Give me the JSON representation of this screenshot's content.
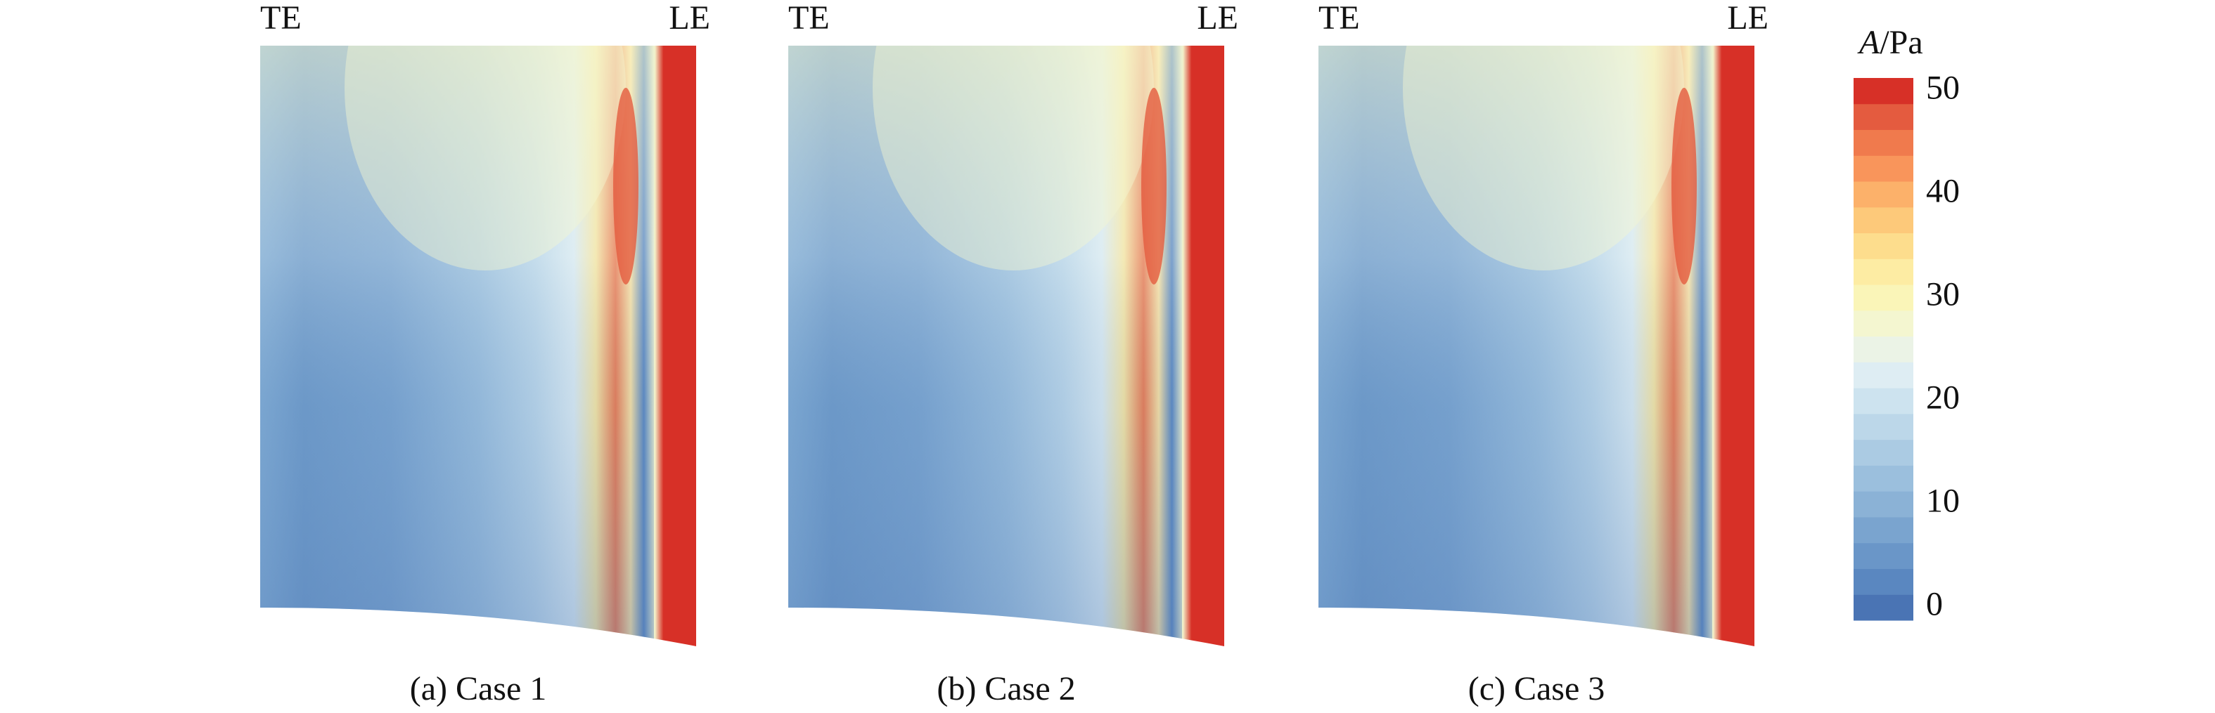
{
  "chart_data": {
    "type": "contour",
    "panels": [
      {
        "left_label": "TE",
        "right_label": "LE",
        "caption": "(a) Case 1"
      },
      {
        "left_label": "TE",
        "right_label": "LE",
        "caption": "(b) Case 2"
      },
      {
        "left_label": "TE",
        "right_label": "LE",
        "caption": "(c) Case 3"
      }
    ],
    "colorbar": {
      "label": {
        "symbol": "A",
        "unit": "/Pa"
      },
      "lim": [
        -1.25,
        51.25
      ],
      "ticks": [
        0,
        10,
        20,
        30,
        40,
        50
      ],
      "colors": [
        "#4a74b4",
        "#5a87c0",
        "#6a96c8",
        "#7aa4cf",
        "#8bb2d6",
        "#9bbfdd",
        "#abcbe3",
        "#bcd7e9",
        "#cde3ef",
        "#deedf3",
        "#ebf3e6",
        "#f4f6d0",
        "#faf5b8",
        "#fdeca3",
        "#fddd8d",
        "#fdc97a",
        "#fcb16a",
        "#f9955b",
        "#f07a4d",
        "#e45b3f",
        "#d73027"
      ]
    }
  }
}
